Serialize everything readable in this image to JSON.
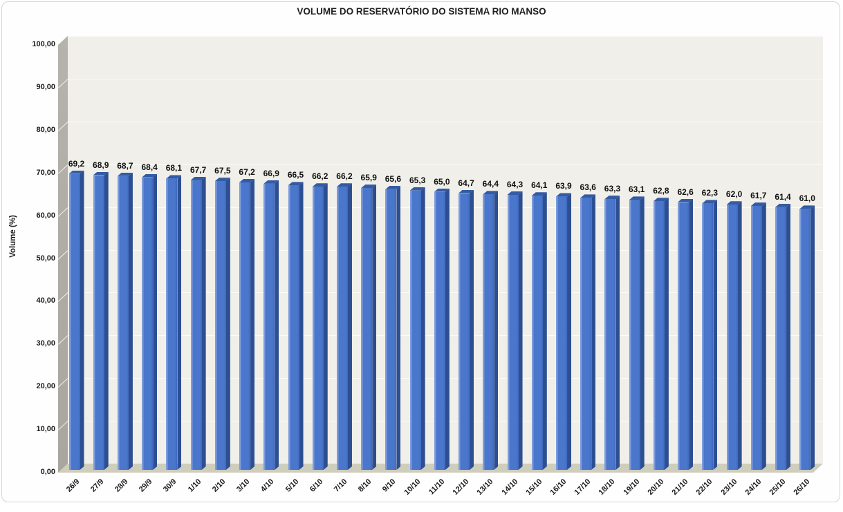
{
  "chart_data": {
    "type": "bar",
    "style": "3d-column",
    "title": "VOLUME DO RESERVATÓRIO DO SISTEMA RIO MANSO",
    "ylabel": "Volume (%)",
    "xlabel": "",
    "ylim": [
      0,
      100
    ],
    "ytick_step": 10,
    "ytick_labels": [
      "0,00",
      "10,00",
      "20,00",
      "30,00",
      "40,00",
      "50,00",
      "60,00",
      "70,00",
      "80,00",
      "90,00",
      "100,00"
    ],
    "grid": true,
    "legend": "none",
    "categories": [
      "26/9",
      "27/9",
      "28/9",
      "29/9",
      "30/9",
      "1/10",
      "2/10",
      "3/10",
      "4/10",
      "5/10",
      "6/10",
      "7/10",
      "8/10",
      "9/10",
      "10/10",
      "11/10",
      "12/10",
      "13/10",
      "14/10",
      "15/10",
      "16/10",
      "17/10",
      "18/10",
      "19/10",
      "20/10",
      "21/10",
      "22/10",
      "23/10",
      "24/10",
      "25/10",
      "26/10"
    ],
    "values": [
      69.2,
      68.9,
      68.7,
      68.4,
      68.1,
      67.7,
      67.5,
      67.2,
      66.9,
      66.5,
      66.2,
      66.2,
      65.9,
      65.6,
      65.3,
      65.0,
      64.7,
      64.4,
      64.3,
      64.1,
      63.9,
      63.6,
      63.3,
      63.1,
      62.8,
      62.6,
      62.3,
      62.0,
      61.7,
      61.4,
      61.0
    ],
    "value_labels": [
      "69,2",
      "68,9",
      "68,7",
      "68,4",
      "68,1",
      "67,7",
      "67,5",
      "67,2",
      "66,9",
      "66,5",
      "66,2",
      "66,2",
      "65,9",
      "65,6",
      "65,3",
      "65,0",
      "64,7",
      "64,4",
      "64,3",
      "64,1",
      "63,9",
      "63,6",
      "63,3",
      "63,1",
      "62,8",
      "62,6",
      "62,3",
      "62,0",
      "61,7",
      "61,4",
      "61,0"
    ],
    "colors": {
      "bar_front": "#4a76cb",
      "bar_front_dark": "#3f69bd",
      "bar_highlight": "#7d9cdc",
      "bar_side": "#2d4f92",
      "bar_top": "#345ba3",
      "wall_back": "#f0efe9",
      "wall_side": "#a8a69e",
      "wall_side_light": "#b5b3ab",
      "floor": "#cfcdbc",
      "gridline": "#fbfbf8",
      "text": "#1a1a1a",
      "frame_border": "#d6d4cf"
    }
  }
}
